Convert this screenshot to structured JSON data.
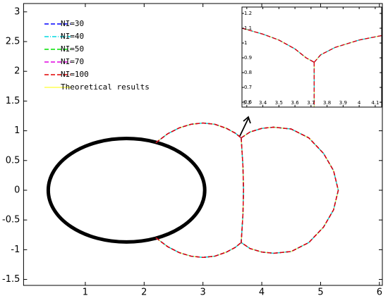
{
  "chart_data": [
    {
      "type": "line",
      "xlim": [
        -0.05,
        6.05
      ],
      "ylim": [
        -1.6,
        3.14
      ],
      "xticks": [
        1,
        2,
        3,
        4,
        5,
        6
      ],
      "yticks": [
        -1.5,
        -1,
        -0.5,
        0,
        0.5,
        1,
        1.5,
        2,
        2.5,
        3
      ],
      "legend": "northwest",
      "ellipse": {
        "cx": 1.7,
        "cy": 0,
        "rx": 1.33,
        "ry": 0.87,
        "color": "#000000"
      },
      "x": [
        2.2,
        2.4,
        2.6,
        2.8,
        3.0,
        3.2,
        3.4,
        3.55,
        3.65,
        null,
        3.65,
        3.8,
        4.0,
        4.2,
        4.5,
        4.8,
        5.05,
        5.22,
        5.3,
        5.22,
        5.05,
        4.8,
        4.5,
        4.2,
        4.0,
        3.8,
        3.65,
        null,
        3.65,
        3.68,
        3.69,
        3.68,
        3.65,
        null,
        2.2,
        2.4,
        2.6,
        2.8,
        3.0,
        3.2,
        3.4,
        3.55,
        3.65
      ],
      "y": [
        0.8,
        0.95,
        1.05,
        1.11,
        1.13,
        1.11,
        1.04,
        0.96,
        0.88,
        null,
        0.88,
        0.98,
        1.04,
        1.06,
        1.03,
        0.88,
        0.62,
        0.33,
        0,
        -0.33,
        -0.62,
        -0.88,
        -1.03,
        -1.06,
        -1.04,
        -0.98,
        -0.88,
        null,
        0.88,
        0.4,
        0,
        -0.4,
        -0.88,
        null,
        -0.8,
        -0.95,
        -1.05,
        -1.11,
        -1.13,
        -1.11,
        -1.04,
        -0.96,
        -0.88
      ],
      "series": [
        {
          "name": "NI=30",
          "color": "#0000ff",
          "dash": "6 3"
        },
        {
          "name": "NI=40",
          "color": "#00d8e0",
          "dash": "6 2 1 2"
        },
        {
          "name": "NI=50",
          "color": "#00e000",
          "dash": "6 3"
        },
        {
          "name": "NI=70",
          "color": "#e000e0",
          "dash": "6 3"
        },
        {
          "name": "NI=100",
          "color": "#e00000",
          "dash": "6 3"
        },
        {
          "name": "Theoretical results",
          "color": "#ffff55",
          "dash": "none"
        }
      ]
    },
    {
      "type": "line",
      "xlim": [
        3.27,
        4.14
      ],
      "ylim": [
        0.567,
        1.243
      ],
      "xticks": [
        3.3,
        3.4,
        3.5,
        3.6,
        3.7,
        3.8,
        3.9,
        4,
        4.1
      ],
      "yticks": [
        0.6,
        0.7,
        0.8,
        0.9,
        1,
        1.1,
        1.2
      ],
      "x": [
        3.27,
        3.4,
        3.5,
        3.6,
        3.67,
        3.72,
        null,
        3.72,
        3.72,
        null,
        3.72,
        3.76,
        3.85,
        4.0,
        4.14
      ],
      "y": [
        1.1,
        1.06,
        1.02,
        0.96,
        0.9,
        0.87,
        null,
        0.87,
        0.567,
        null,
        0.87,
        0.92,
        0.97,
        1.02,
        1.05
      ]
    }
  ]
}
